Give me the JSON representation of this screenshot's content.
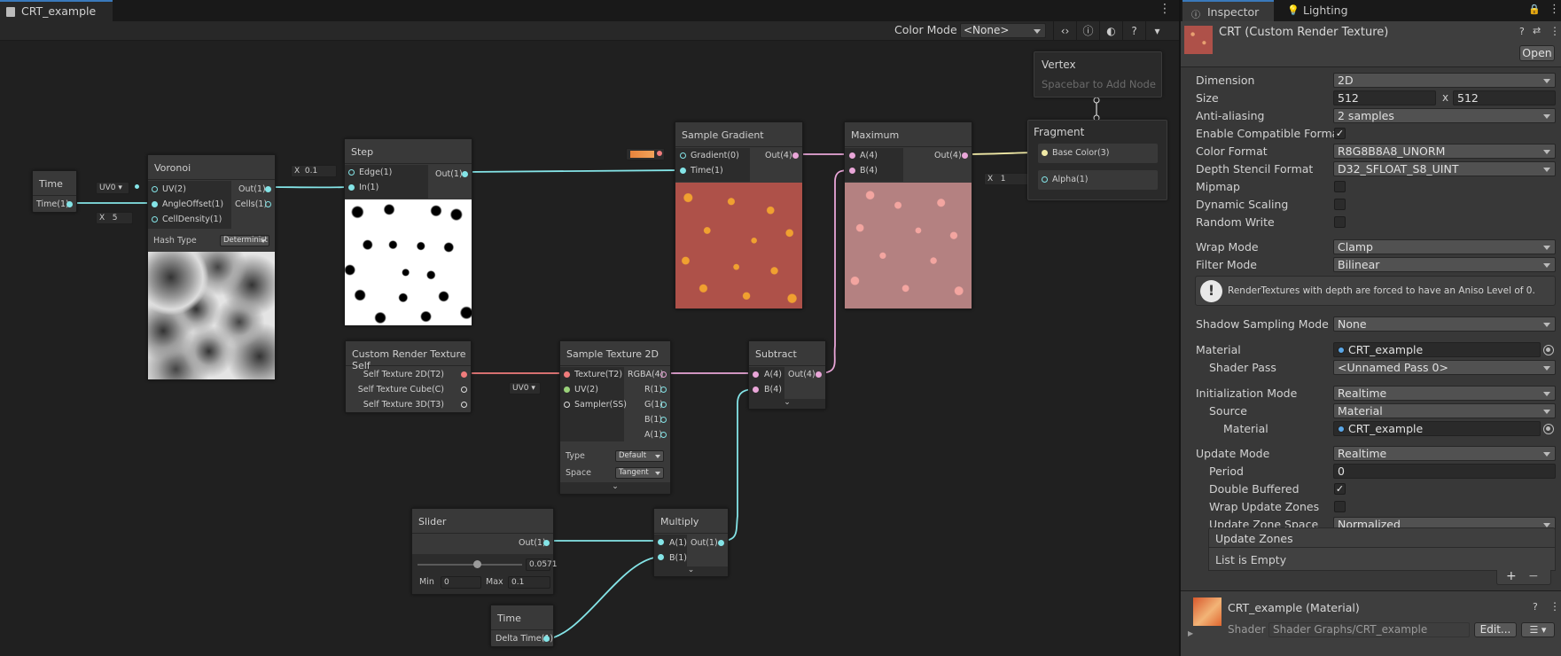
{
  "graph": {
    "tab_title": "CRT_example",
    "toolbar": {
      "color_mode_label": "Color Mode",
      "color_mode_value": "<None>"
    },
    "nodes": {
      "time1": {
        "title": "Time",
        "out": "Time(1)"
      },
      "voronoi": {
        "title": "Voronoi",
        "in_uv": "UV(2)",
        "in_angle": "AngleOffset(1)",
        "in_density": "CellDensity(1)",
        "out1": "Out(1)",
        "out2": "Cells(1)",
        "uv_field": "UV0",
        "density_x": "X",
        "density_val": "5",
        "hash_label": "Hash Type",
        "hash_value": "Determinist"
      },
      "step": {
        "title": "Step",
        "in_edge": "Edge(1)",
        "in_in": "In(1)",
        "out": "Out(1)",
        "edge_x": "X",
        "edge_val": "0.1"
      },
      "sample_gradient": {
        "title": "Sample Gradient",
        "in_grad": "Gradient(0)",
        "in_time": "Time(1)",
        "out": "Out(4)"
      },
      "maximum": {
        "title": "Maximum",
        "in_a": "A(4)",
        "in_b": "B(4)",
        "out": "Out(4)"
      },
      "vertex": {
        "title": "Vertex",
        "hint": "Spacebar to Add Node"
      },
      "fragment": {
        "title": "Fragment",
        "base_color": "Base Color(3)",
        "alpha": "Alpha(1)",
        "alpha_x": "X",
        "alpha_val": "1"
      },
      "crt_self": {
        "title": "Custom Render Texture Self",
        "out1": "Self Texture 2D(T2)",
        "out2": "Self Texture Cube(C)",
        "out3": "Self Texture 3D(T3)"
      },
      "sample_tex": {
        "title": "Sample Texture 2D",
        "in_tex": "Texture(T2)",
        "in_uv": "UV(2)",
        "in_sampler": "Sampler(SS)",
        "out_rgba": "RGBA(4)",
        "out_r": "R(1)",
        "out_g": "G(1)",
        "out_b": "B(1)",
        "out_a": "A(1)",
        "uv_field": "UV0",
        "type_label": "Type",
        "type_value": "Default",
        "space_label": "Space",
        "space_value": "Tangent"
      },
      "subtract": {
        "title": "Subtract",
        "in_a": "A(4)",
        "in_b": "B(4)",
        "out": "Out(4)"
      },
      "slider": {
        "title": "Slider",
        "out": "Out(1)",
        "value": "0.0571",
        "value_fraction": 0.571,
        "min_label": "Min",
        "min_val": "0",
        "max_label": "Max",
        "max_val": "0.1"
      },
      "multiply": {
        "title": "Multiply",
        "in_a": "A(1)",
        "in_b": "B(1)",
        "out": "Out(1)"
      },
      "time2": {
        "title": "Time",
        "out": "Delta Time(1)"
      }
    }
  },
  "inspector": {
    "tabs": [
      {
        "label": "Inspector"
      },
      {
        "label": "Lighting"
      }
    ],
    "asset_title": "CRT (Custom Render Texture)",
    "open_button": "Open",
    "fields": {
      "dimension": {
        "label": "Dimension",
        "value": "2D"
      },
      "size": {
        "label": "Size",
        "w": "512",
        "x": "x",
        "h": "512"
      },
      "anti_aliasing": {
        "label": "Anti-aliasing",
        "value": "2 samples"
      },
      "enable_compat": {
        "label": "Enable Compatible Format"
      },
      "color_format": {
        "label": "Color Format",
        "value": "R8G8B8A8_UNORM"
      },
      "depth_format": {
        "label": "Depth Stencil Format",
        "value": "D32_SFLOAT_S8_UINT"
      },
      "mipmap": {
        "label": "Mipmap"
      },
      "dynamic_scaling": {
        "label": "Dynamic Scaling"
      },
      "random_write": {
        "label": "Random Write"
      },
      "wrap_mode": {
        "label": "Wrap Mode",
        "value": "Clamp"
      },
      "filter_mode": {
        "label": "Filter Mode",
        "value": "Bilinear"
      },
      "warning": "RenderTextures with depth are forced to have an Aniso Level of 0.",
      "shadow_mode": {
        "label": "Shadow Sampling Mode",
        "value": "None"
      },
      "material": {
        "label": "Material",
        "value": "CRT_example"
      },
      "shader_pass": {
        "label": "Shader Pass",
        "value": "<Unnamed Pass 0>"
      },
      "init_mode": {
        "label": "Initialization Mode",
        "value": "Realtime"
      },
      "source": {
        "label": "Source",
        "value": "Material"
      },
      "init_material": {
        "label": "Material",
        "value": "CRT_example"
      },
      "update_mode": {
        "label": "Update Mode",
        "value": "Realtime"
      },
      "period": {
        "label": "Period",
        "value": "0"
      },
      "double_buffered": {
        "label": "Double Buffered"
      },
      "wrap_zones": {
        "label": "Wrap Update Zones"
      },
      "zone_space": {
        "label": "Update Zone Space",
        "value": "Normalized"
      },
      "update_zones": {
        "header": "Update Zones",
        "empty": "List is Empty"
      }
    },
    "material_section": {
      "title": "CRT_example (Material)",
      "shader_label": "Shader",
      "shader_value": "Shader Graphs/CRT_example",
      "edit_button": "Edit..."
    }
  },
  "colors": {
    "accent": "#3a79bb",
    "wire_float": "#84e4e7",
    "wire_vec4": "#e9a6d8",
    "gradient_preview": "#ae5149",
    "maximum_preview": "#b48181"
  }
}
